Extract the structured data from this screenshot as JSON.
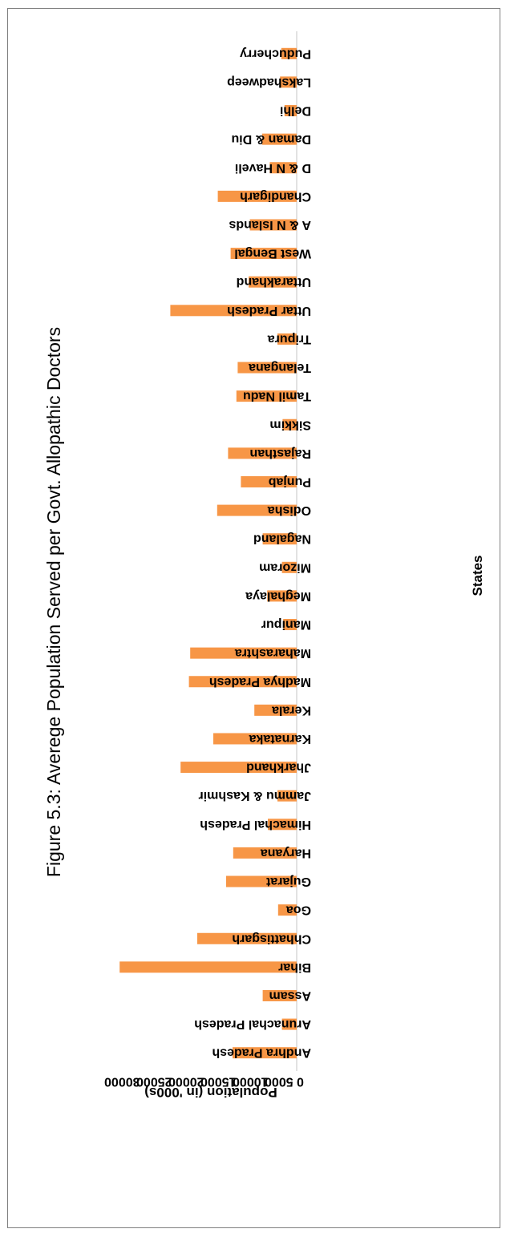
{
  "chart_data": {
    "type": "bar",
    "title": "Figure 5.3: Averege Population Served per Govt. Allopathic Doctors",
    "xlabel": "States",
    "ylabel": "Population (in '000s)",
    "ylim": [
      0,
      30000
    ],
    "yticks": [
      "0",
      "5000",
      "10000",
      "15000",
      "20000",
      "25000",
      "30000"
    ],
    "grid": false,
    "color": "#F79646",
    "categories": [
      "Andhra Pradesh",
      "Arunachal Pradesh",
      "Assam",
      "Bihar",
      "Chhattisgarh",
      "Goa",
      "Gujarat",
      "Haryana",
      "Himachal Pradesh",
      "Jammu & Kashmir",
      "Jharkhand",
      "Karnataka",
      "Kerala",
      "Madhya Pradesh",
      "Maharashtra",
      "Manipur",
      "Meghalaya",
      "Mizoram",
      "Nagaland",
      "Odisha",
      "Punjab",
      "Rajasthan",
      "Sikkim",
      "Tamil Nadu",
      "Telangana",
      "Tripura",
      "Uttar Pradesh",
      "Uttarakhand",
      "West Bengal",
      "A & N Islands",
      "Chandigarh",
      "D & N Haveli",
      "Daman & Diu",
      "Delhi",
      "Lakshadweep",
      "Puducherry"
    ],
    "values": [
      10000,
      2300,
      5300,
      27600,
      15500,
      2900,
      11000,
      9900,
      4500,
      3000,
      18100,
      13000,
      6600,
      16800,
      16600,
      2100,
      4600,
      2300,
      5300,
      12400,
      8700,
      10700,
      2200,
      9400,
      9200,
      3000,
      19700,
      7500,
      10300,
      7300,
      12300,
      4200,
      5400,
      1900,
      2600,
      2400
    ]
  }
}
